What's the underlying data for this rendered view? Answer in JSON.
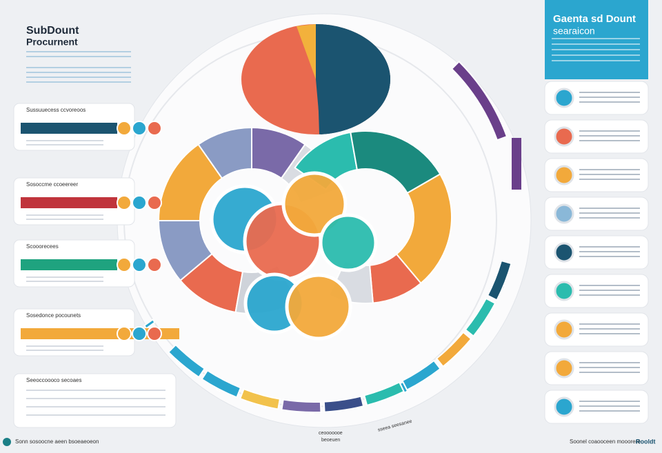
{
  "header": {
    "title_line1": "SubDount",
    "title_line2": "Procurnent"
  },
  "right_header": {
    "title_line1": "Gaenta sd Dount",
    "title_line2": "searaicon"
  },
  "left_panels": [
    {
      "label": "Sussuuecess ccvoreoos"
    },
    {
      "label": "Sosoccme ccoeereer"
    },
    {
      "label": "Scooorecees"
    },
    {
      "label": "Sosedonce pocounets"
    },
    {
      "label": "Seeoccoooco secoaes"
    }
  ],
  "center_labels": [
    "ceooooooe",
    "beoeuen",
    "sseea seesanee"
  ],
  "footer": {
    "left": "Sonn sosoocne aeen bsoeaeoeon",
    "right": "Soonel coaooceen mooorere",
    "brand": "Rooldt"
  }
}
